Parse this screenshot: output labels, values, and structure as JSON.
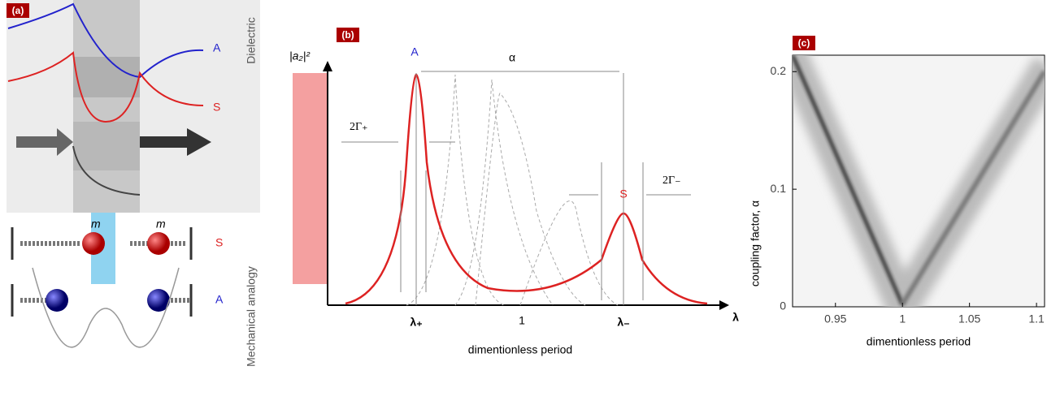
{
  "panel_a": {
    "label": "(a)",
    "curve_labels": [
      "A",
      "S"
    ],
    "side_labels": [
      "Dielectric",
      "Mechanical analogy"
    ],
    "mass_labels": [
      "m",
      "m"
    ],
    "row_labels": [
      "S",
      "A"
    ]
  },
  "panel_b": {
    "label": "(b)",
    "y_label": "|a₂|²",
    "peak_labels": [
      "A",
      "S"
    ],
    "alpha": "α",
    "widths": [
      "2Γ₊",
      "2Γ₋"
    ],
    "x_marks": [
      "λ₊",
      "1",
      "λ₋"
    ],
    "axis_symbol": "λ",
    "x_label": "dimentionless period"
  },
  "panel_c": {
    "label": "(c)",
    "x_label": "dimentionless period",
    "y_label": "coupling factor, α",
    "xlim": [
      0.918,
      1.106
    ],
    "ylim": [
      0,
      0.214
    ],
    "xticks": [
      0.95,
      1,
      1.05,
      1.1
    ],
    "yticks": [
      0,
      0.1,
      0.2
    ]
  }
}
